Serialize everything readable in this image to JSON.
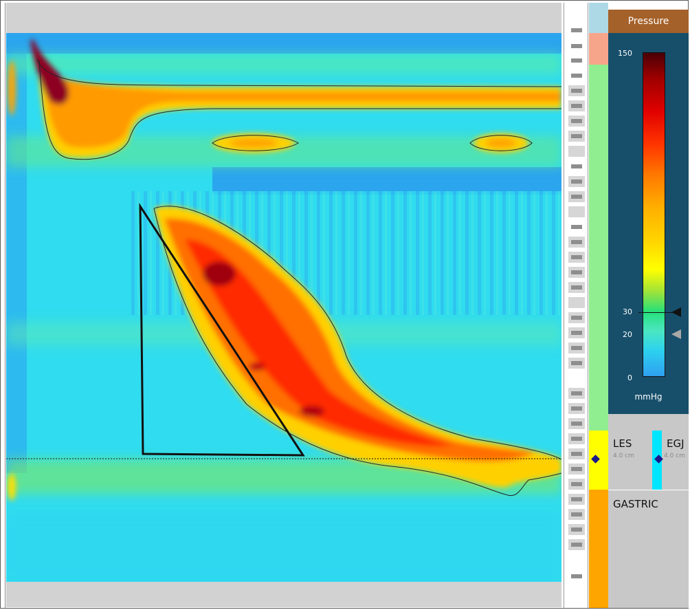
{
  "colorbar": {
    "title": "Pressure",
    "unit": "mmHg",
    "ticks": [
      {
        "label": "150",
        "value": 150
      },
      {
        "label": "30",
        "value": 30
      },
      {
        "label": "20",
        "value": 20
      },
      {
        "label": "0",
        "value": 0
      }
    ],
    "upper_marker_value": 30,
    "lower_marker_value": 20
  },
  "regions": [
    {
      "label": "LES",
      "sublabel": "4.0 cm"
    },
    {
      "label": "EGJ",
      "sublabel": "4.0 cm"
    },
    {
      "label": "GASTRIC",
      "sublabel": ""
    }
  ],
  "colors": {
    "panel": "#174f6b",
    "panel_header": "#a5612a",
    "region_upper": "#add8e6",
    "region_salmon": "#f7a58a",
    "region_esophagus": "#90ee90",
    "region_les": "#ffff00",
    "region_egj": "#00e5ff",
    "region_gastric": "#ffa500"
  },
  "sensor_count": 36
}
